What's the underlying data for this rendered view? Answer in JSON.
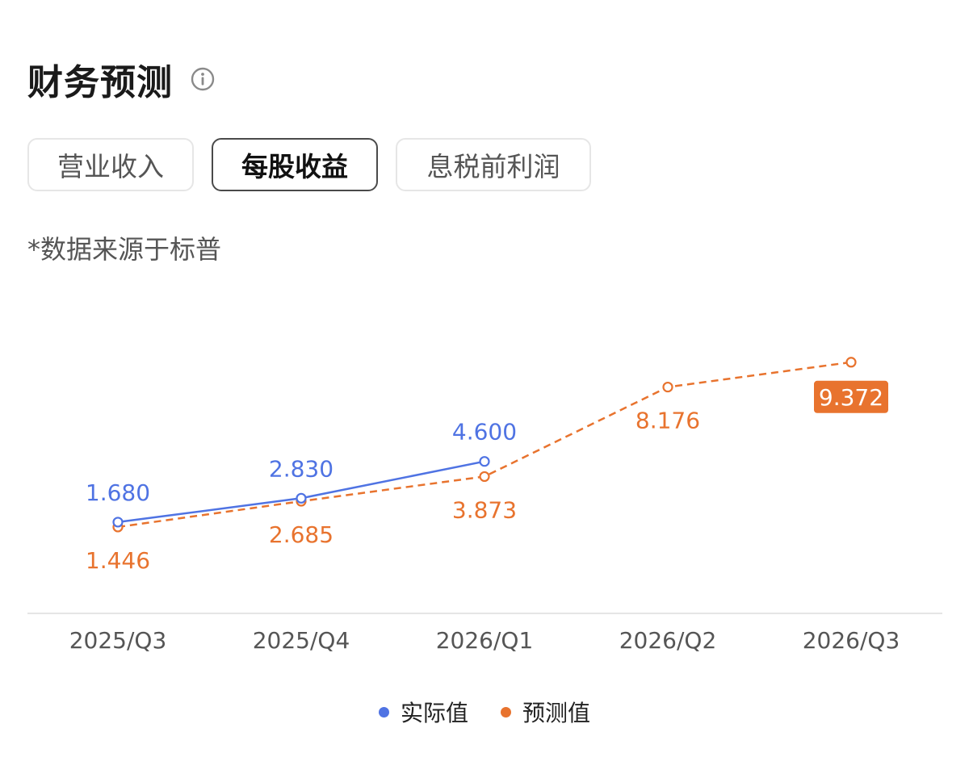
{
  "header": {
    "title": "财务预测"
  },
  "tabs": [
    {
      "label": "营业收入",
      "active": false
    },
    {
      "label": "每股收益",
      "active": true
    },
    {
      "label": "息税前利润",
      "active": false
    }
  ],
  "source_note": "*数据来源于标普",
  "colors": {
    "actual": "#4f73e3",
    "forecast": "#e8732e",
    "axis": "#e5e5e5",
    "tick_text": "#555555"
  },
  "chart_data": {
    "type": "line",
    "categories": [
      "2025/Q3",
      "2025/Q4",
      "2026/Q1",
      "2026/Q2",
      "2026/Q3"
    ],
    "series": [
      {
        "name": "实际值",
        "values": [
          1.68,
          2.83,
          4.6,
          null,
          null
        ],
        "labels": [
          "1.680",
          "2.830",
          "4.600",
          "",
          ""
        ],
        "style": "solid"
      },
      {
        "name": "预测值",
        "values": [
          1.446,
          2.685,
          3.873,
          8.176,
          9.372
        ],
        "labels": [
          "1.446",
          "2.685",
          "3.873",
          "8.176",
          "9.372"
        ],
        "style": "dashed",
        "highlight_index": 4
      }
    ],
    "legend_position": "bottom"
  }
}
